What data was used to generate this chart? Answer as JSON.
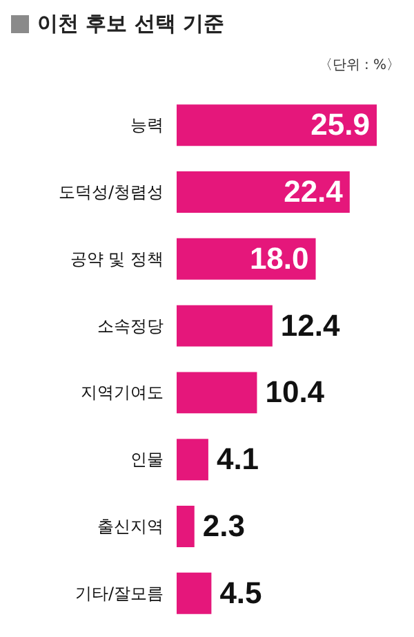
{
  "chart_data": {
    "type": "bar",
    "orientation": "horizontal",
    "title": "이천 후보 선택 기준",
    "annotations": [
      "〈단위 : %〉"
    ],
    "categories": [
      "능력",
      "도덕성/청렴성",
      "공약 및 정책",
      "소속정당",
      "지역기여도",
      "인물",
      "출신지역",
      "기타/잘모름"
    ],
    "values": [
      25.9,
      22.4,
      18.0,
      12.4,
      10.4,
      4.1,
      2.3,
      4.5
    ],
    "value_labels": [
      "25.9",
      "22.4",
      "18.0",
      "12.4",
      "10.4",
      "4.1",
      "2.3",
      "4.5"
    ],
    "color": "#e5177b"
  }
}
